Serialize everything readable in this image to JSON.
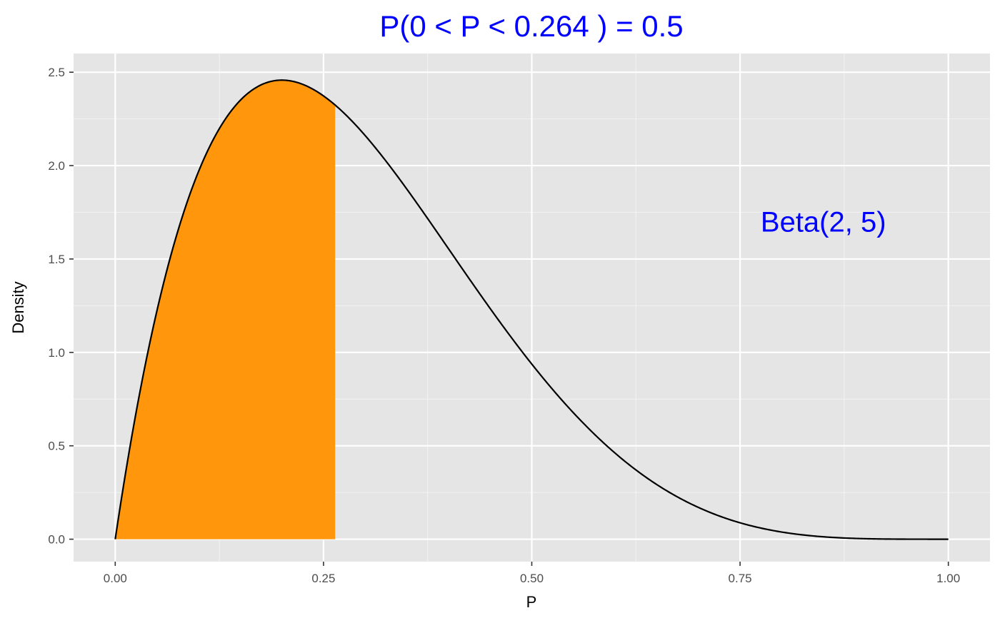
{
  "chart_data": {
    "type": "area",
    "title": "P(0 < P <  0.264 ) = 0.5",
    "xlabel": "P",
    "ylabel": "Density",
    "annotation": "Beta(2, 5)",
    "annotation_position": {
      "x": 0.85,
      "y": 1.7
    },
    "distribution": {
      "name": "Beta",
      "alpha": 2,
      "beta": 5
    },
    "shaded_interval": [
      0,
      0.264
    ],
    "shaded_probability": 0.5,
    "xlim": [
      -0.05,
      1.05
    ],
    "ylim": [
      -0.12,
      2.6
    ],
    "x_ticks": [
      0,
      0.25,
      0.5,
      0.75,
      1
    ],
    "x_tick_labels": [
      "0.00",
      "0.25",
      "0.50",
      "0.75",
      "1.00"
    ],
    "y_ticks": [
      0,
      0.5,
      1,
      1.5,
      2,
      2.5
    ],
    "y_tick_labels": [
      "0.0",
      "0.5",
      "1.0",
      "1.5",
      "2.0",
      "2.5"
    ],
    "grid": true,
    "colors": {
      "panel_background": "#e5e5e5",
      "grid_major": "#ffffff",
      "grid_minor": "#f2f2f2",
      "fill": "#ff960c",
      "line": "#000000",
      "title": "#0000ff",
      "annotation": "#0000ff",
      "tick_text": "#4d4d4d"
    }
  }
}
